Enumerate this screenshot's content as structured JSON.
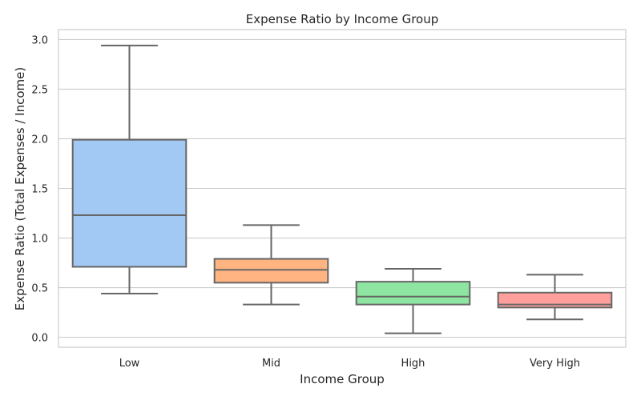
{
  "chart_data": {
    "type": "box",
    "title": "Expense Ratio by Income Group",
    "xlabel": "Income Group",
    "ylabel": "Expense Ratio (Total Expenses / Income)",
    "categories": [
      "Low",
      "Mid",
      "High",
      "Very High"
    ],
    "ylim": [
      -0.1,
      3.1
    ],
    "yticks": [
      0.0,
      0.5,
      1.0,
      1.5,
      2.0,
      2.5,
      3.0
    ],
    "ytick_labels": [
      "0.0",
      "0.5",
      "1.0",
      "1.5",
      "2.0",
      "2.5",
      "3.0"
    ],
    "grid": true,
    "boxes": [
      {
        "category": "Low",
        "whisker_low": 0.44,
        "q1": 0.71,
        "median": 1.23,
        "q3": 1.99,
        "whisker_high": 2.94,
        "color": "#a1c9f4"
      },
      {
        "category": "Mid",
        "whisker_low": 0.33,
        "q1": 0.55,
        "median": 0.68,
        "q3": 0.79,
        "whisker_high": 1.13,
        "color": "#ffb482"
      },
      {
        "category": "High",
        "whisker_low": 0.04,
        "q1": 0.33,
        "median": 0.41,
        "q3": 0.56,
        "whisker_high": 0.69,
        "color": "#8de5a1"
      },
      {
        "category": "Very High",
        "whisker_low": 0.18,
        "q1": 0.3,
        "median": 0.33,
        "q3": 0.45,
        "whisker_high": 0.63,
        "color": "#ff9f9b"
      }
    ],
    "colors": {
      "grid": "#cccccc",
      "frame": "#cccccc",
      "box_line": "#666666",
      "text": "#262626"
    }
  }
}
